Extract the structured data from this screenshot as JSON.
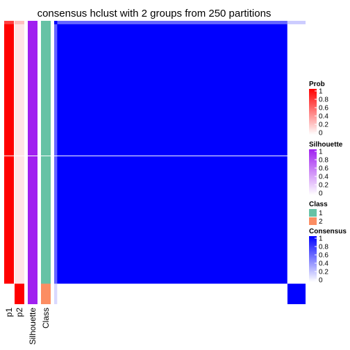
{
  "chart_data": {
    "type": "heatmap",
    "title": "consensus hclust with 2 groups from 250 partitions",
    "groups": {
      "names": [
        "1",
        "2"
      ],
      "sample_counts": [
        77,
        6
      ]
    },
    "annotation_columns": [
      {
        "name": "p1",
        "values_by_group": [
          1.0,
          0.0
        ]
      },
      {
        "name": "p2",
        "values_by_group": [
          0.1,
          1.0
        ]
      },
      {
        "name": "Silhouette",
        "values_by_group": [
          1.0,
          1.0
        ]
      },
      {
        "name": "Class",
        "values_by_group": [
          "1",
          "2"
        ]
      }
    ],
    "consensus_matrix": {
      "first_row_first_group": [
        1.0,
        0.6
      ],
      "first_row_second_group": [
        0.6,
        0.2
      ],
      "within_group": [
        1.0,
        1.0
      ],
      "between_group": [
        0.0,
        0.0
      ],
      "first_sample_between": 0.15
    },
    "legends": [
      {
        "title": "Prob",
        "type": "gradient",
        "ticks": [
          "1",
          "0.8",
          "0.6",
          "0.4",
          "0.2",
          "0"
        ],
        "colors": [
          "#FF0000",
          "#FFFFFF"
        ]
      },
      {
        "title": "Silhouette",
        "type": "gradient",
        "ticks": [
          "1",
          "0.8",
          "0.6",
          "0.4",
          "0.2",
          "0"
        ],
        "colors": [
          "#A020F0",
          "#FFFFFF"
        ]
      },
      {
        "title": "Class",
        "type": "discrete",
        "entries": [
          {
            "label": "1",
            "color": "#66C2A5"
          },
          {
            "label": "2",
            "color": "#FC8D62"
          }
        ]
      },
      {
        "title": "Consensus",
        "type": "gradient",
        "ticks": [
          "1",
          "0.8",
          "0.6",
          "0.4",
          "0.2",
          "0"
        ],
        "colors": [
          "#0000FF",
          "#FFFFFF"
        ]
      }
    ],
    "colors": {
      "prob": "#FF0000",
      "silhouette": "#A020F0",
      "class_1": "#66C2A5",
      "class_2": "#FC8D62",
      "consensus": "#0000FF"
    }
  }
}
